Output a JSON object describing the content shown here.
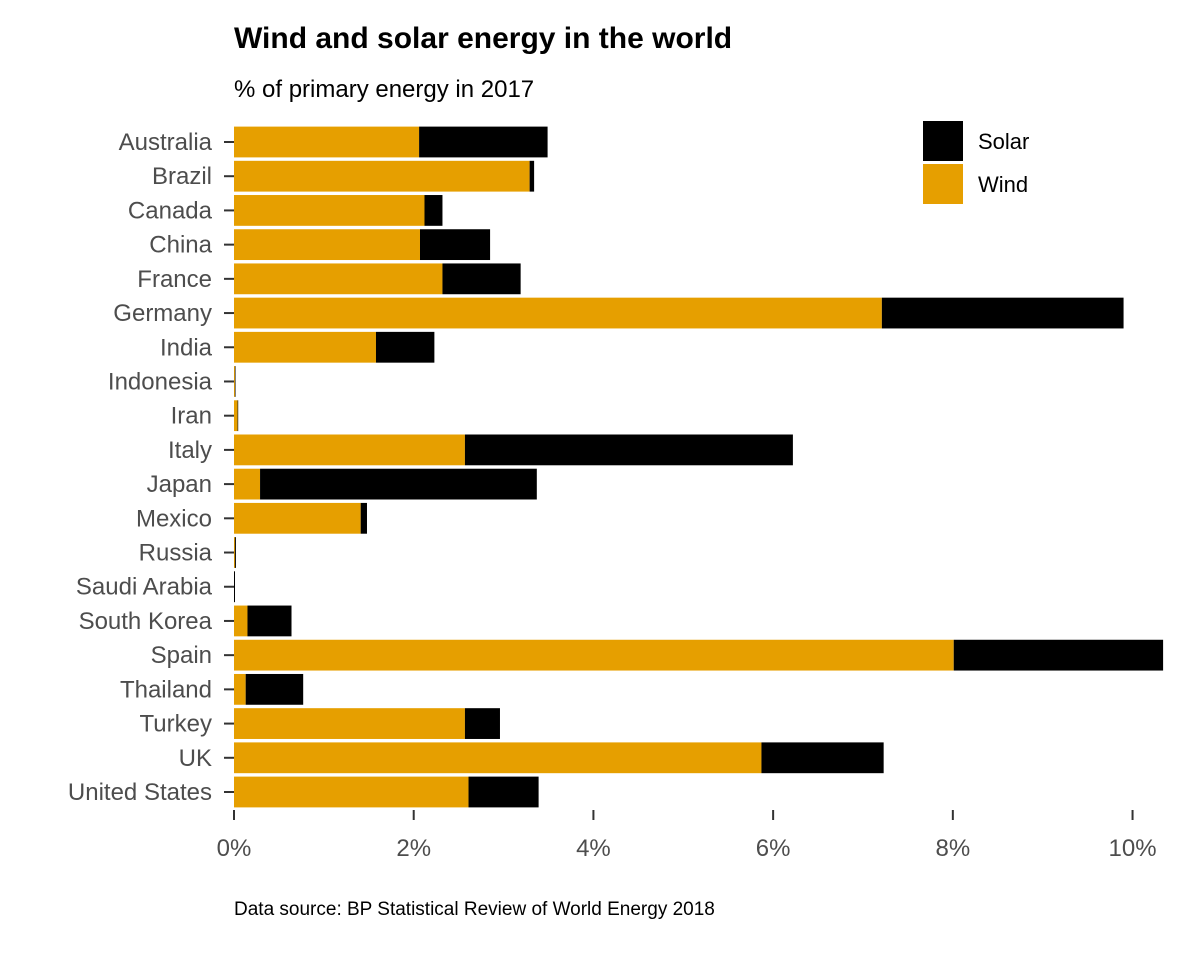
{
  "chart_data": {
    "type": "bar",
    "orientation": "horizontal",
    "stacked": true,
    "title": "Wind and solar energy in the world",
    "subtitle": "% of primary energy in 2017",
    "caption": "Data source: BP Statistical Review of World Energy 2018",
    "categories": [
      "Australia",
      "Brazil",
      "Canada",
      "China",
      "France",
      "Germany",
      "India",
      "Indonesia",
      "Iran",
      "Italy",
      "Japan",
      "Mexico",
      "Russia",
      "Saudi Arabia",
      "South Korea",
      "Spain",
      "Thailand",
      "Turkey",
      "UK",
      "United States"
    ],
    "series": [
      {
        "name": "Wind",
        "color": "#E69F00",
        "values": [
          2.06,
          3.29,
          2.12,
          2.07,
          2.32,
          7.21,
          1.58,
          0.01,
          0.04,
          2.57,
          0.29,
          1.41,
          0.01,
          0.0,
          0.15,
          8.01,
          0.13,
          2.57,
          5.87,
          2.61
        ]
      },
      {
        "name": "Solar",
        "color": "#000000",
        "values": [
          1.43,
          0.05,
          0.2,
          0.78,
          0.87,
          2.69,
          0.65,
          0.0,
          0.0,
          3.65,
          3.08,
          0.07,
          0.01,
          0.01,
          0.49,
          2.33,
          0.64,
          0.39,
          1.36,
          0.78
        ]
      }
    ],
    "legend": {
      "position": "top-right",
      "order": [
        "Solar",
        "Wind"
      ]
    },
    "x_ticks": [
      0,
      2,
      4,
      6,
      8,
      10
    ],
    "x_tick_labels": [
      "0%",
      "2%",
      "4%",
      "6%",
      "8%",
      "10%"
    ],
    "xlim": [
      0,
      10.35
    ],
    "grid": false
  }
}
